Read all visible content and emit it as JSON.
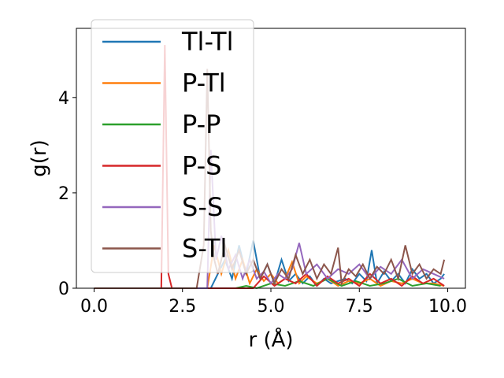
{
  "chart_data": {
    "type": "line",
    "title": "",
    "xlabel": "r (Å)",
    "ylabel": "g(r)",
    "xlim": [
      -0.5,
      10.5
    ],
    "ylim": [
      0,
      5.45
    ],
    "xticks": [
      0.0,
      2.5,
      5.0,
      7.5,
      10.0
    ],
    "xtick_labels": [
      "0.0",
      "2.5",
      "5.0",
      "7.5",
      "10.0"
    ],
    "yticks": [
      0,
      2,
      4
    ],
    "ytick_labels": [
      "0",
      "2",
      "4"
    ],
    "grid": false,
    "legend_position": "top-left",
    "series": [
      {
        "name": "Tl-Tl",
        "color": "#1f77b4",
        "x": [
          0,
          3.0,
          3.3,
          3.5,
          3.7,
          3.9,
          4.1,
          4.3,
          4.5,
          4.7,
          4.9,
          5.1,
          5.3,
          5.5,
          5.7,
          5.9,
          6.1,
          6.3,
          6.5,
          6.7,
          6.9,
          7.1,
          7.3,
          7.5,
          7.7,
          7.85,
          8.0,
          8.2,
          8.4,
          8.6,
          8.8,
          9.0,
          9.2,
          9.4,
          9.6,
          9.8,
          9.9
        ],
        "y": [
          0,
          0,
          0,
          0.3,
          0.6,
          0.2,
          0.9,
          0.3,
          1.0,
          0.2,
          0.5,
          0.1,
          0.6,
          0.15,
          0.3,
          0.1,
          0.25,
          0.05,
          0.2,
          0.1,
          0.15,
          0.2,
          0.1,
          0.3,
          0.15,
          0.8,
          0.1,
          0.35,
          0.15,
          0.3,
          0.1,
          0.4,
          0.2,
          0.3,
          0.1,
          0.2,
          0.3
        ]
      },
      {
        "name": "P-Tl",
        "color": "#ff7f0e",
        "x": [
          0,
          3.2,
          3.4,
          3.6,
          3.8,
          4.0,
          4.2,
          4.4,
          4.6,
          4.8,
          5.0,
          5.2,
          5.4,
          5.6,
          5.8,
          6.0,
          6.3,
          6.6,
          6.9,
          7.2,
          7.5,
          7.8,
          8.1,
          8.4,
          8.7,
          9.0,
          9.3,
          9.6,
          9.9
        ],
        "y": [
          0,
          0,
          0.9,
          0.3,
          0.8,
          0.2,
          0.6,
          0.1,
          0.4,
          0.15,
          0.3,
          0.1,
          0.2,
          0.55,
          0.1,
          0.25,
          0.1,
          0.2,
          0.05,
          0.15,
          0.1,
          0.2,
          0.05,
          0.15,
          0.1,
          0.2,
          0.1,
          0.1,
          0.05
        ]
      },
      {
        "name": "P-P",
        "color": "#2ca02c",
        "x": [
          0,
          4.0,
          4.3,
          4.6,
          5.0,
          5.4,
          5.8,
          6.2,
          6.6,
          7.0,
          7.4,
          7.8,
          8.2,
          8.6,
          9.0,
          9.4,
          9.8
        ],
        "y": [
          0,
          0,
          0.05,
          0.0,
          0.1,
          0.05,
          0.15,
          0.05,
          0.2,
          0.05,
          0.15,
          0.05,
          0.1,
          0.2,
          0.05,
          0.1,
          0.05
        ]
      },
      {
        "name": "P-S",
        "color": "#d62728",
        "x": [
          0,
          1.9,
          2.0,
          2.1,
          2.2,
          4.5,
          4.8,
          5.1,
          5.4,
          5.7,
          6.0,
          6.3,
          6.6,
          6.9,
          7.2,
          7.5,
          7.8,
          8.1,
          8.4,
          8.7,
          9.0,
          9.3,
          9.6,
          9.9
        ],
        "y": [
          0,
          0,
          5.1,
          0.3,
          0,
          0,
          0.25,
          0.05,
          0.2,
          0.1,
          0.3,
          0.05,
          0.25,
          0.1,
          0.2,
          0.05,
          0.3,
          0.1,
          0.2,
          0.05,
          0.25,
          0.1,
          0.2,
          0.05
        ]
      },
      {
        "name": "S-S",
        "color": "#9467bd",
        "x": [
          0,
          3.2,
          3.3,
          3.45,
          3.6,
          3.8,
          4.0,
          4.2,
          4.4,
          4.6,
          4.8,
          5.0,
          5.2,
          5.4,
          5.6,
          5.8,
          6.0,
          6.3,
          6.6,
          6.9,
          7.2,
          7.5,
          7.8,
          8.1,
          8.4,
          8.7,
          9.0,
          9.3,
          9.6,
          9.9
        ],
        "y": [
          0,
          0,
          2.9,
          0.6,
          1.1,
          0.4,
          0.7,
          0.2,
          0.6,
          0.2,
          0.35,
          0.1,
          0.3,
          0.2,
          0.4,
          0.95,
          0.3,
          0.5,
          0.2,
          0.4,
          0.3,
          0.5,
          0.2,
          0.45,
          0.3,
          0.6,
          0.2,
          0.4,
          0.3,
          0.2
        ]
      },
      {
        "name": "S-Tl",
        "color": "#8c564b",
        "x": [
          0,
          2.9,
          3.1,
          3.2,
          3.3,
          3.4,
          3.5,
          3.7,
          3.9,
          4.1,
          4.3,
          4.5,
          4.7,
          4.9,
          5.1,
          5.3,
          5.5,
          5.7,
          5.9,
          6.1,
          6.3,
          6.5,
          6.7,
          6.9,
          7.0,
          7.2,
          7.4,
          7.6,
          7.8,
          8.0,
          8.2,
          8.4,
          8.6,
          8.8,
          9.0,
          9.2,
          9.4,
          9.6,
          9.8,
          9.9
        ],
        "y": [
          0,
          0,
          0.9,
          4.6,
          1.2,
          0.6,
          0.3,
          0.9,
          0.4,
          0.8,
          0.3,
          0.6,
          0.2,
          0.5,
          0.1,
          0.4,
          0.2,
          0.7,
          0.3,
          0.6,
          0.2,
          0.5,
          0.3,
          0.85,
          0.1,
          0.4,
          0.25,
          0.5,
          0.2,
          0.45,
          0.3,
          0.6,
          0.2,
          0.9,
          0.3,
          0.5,
          0.2,
          0.4,
          0.3,
          0.6
        ]
      }
    ]
  }
}
